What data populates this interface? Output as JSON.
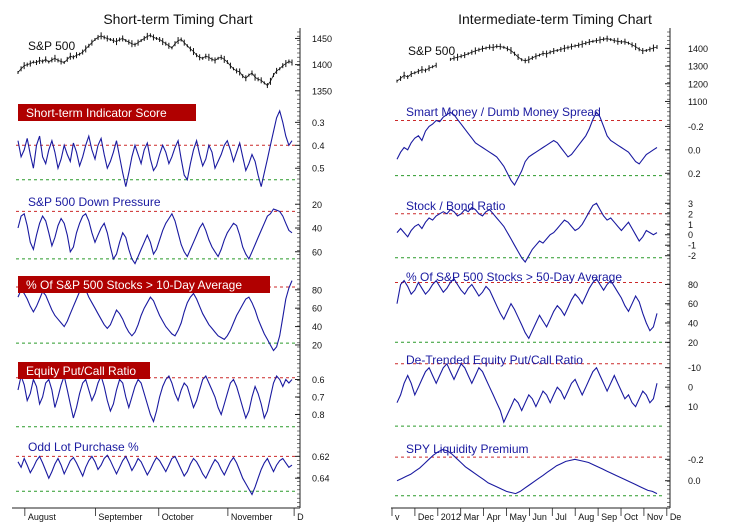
{
  "colors": {
    "series": "#1a1aa0",
    "price": "#111111",
    "ref_top": "#cc2a2a",
    "ref_bottom": "#2a9a2a",
    "label_bg": "#b00000",
    "label_text_on_red": "#ffffff",
    "label_text_blue": "#1a1aa0",
    "axis": "#222222"
  },
  "panels": {
    "left": {
      "title": "Short-term Timing Chart",
      "month_labels": [
        "August",
        "September",
        "October",
        "November",
        "D"
      ]
    },
    "right": {
      "title": "Intermediate-term Timing Chart",
      "month_labels": [
        "v",
        "Dec",
        "2012",
        "Mar",
        "Apr",
        "May",
        "Jun",
        "Jul",
        "Aug",
        "Sep",
        "Oct",
        "Nov",
        "De"
      ]
    }
  },
  "chart_data": [
    {
      "type": "line",
      "panel": "left",
      "title": "S&P 500",
      "label_style": "plain",
      "y_ticks": [
        "1450",
        "1400",
        "1350"
      ],
      "tick_values": [
        1450,
        1400,
        1350
      ],
      "ylim": [
        1340,
        1470
      ],
      "ref_top": null,
      "ref_bottom": null,
      "kind": "price",
      "values": [
        1385,
        1392,
        1398,
        1400,
        1402,
        1405,
        1404,
        1408,
        1406,
        1410,
        1405,
        1409,
        1412,
        1408,
        1406,
        1404,
        1410,
        1416,
        1414,
        1418,
        1420,
        1424,
        1430,
        1436,
        1442,
        1448,
        1452,
        1455,
        1452,
        1450,
        1448,
        1446,
        1444,
        1448,
        1450,
        1446,
        1443,
        1440,
        1438,
        1442,
        1446,
        1450,
        1454,
        1456,
        1452,
        1450,
        1448,
        1444,
        1440,
        1436,
        1432,
        1440,
        1446,
        1448,
        1442,
        1436,
        1430,
        1425,
        1418,
        1414,
        1412,
        1416,
        1414,
        1410,
        1408,
        1412,
        1414,
        1410,
        1405,
        1398,
        1392,
        1388,
        1386,
        1378,
        1374,
        1380,
        1384,
        1376,
        1372,
        1370,
        1365,
        1360,
        1368,
        1380,
        1388,
        1392,
        1398,
        1402,
        1406,
        1404
      ]
    },
    {
      "type": "line",
      "panel": "left",
      "title": "Short-term Indicator Score",
      "label_style": "red",
      "y_ticks": [
        "0.3",
        "0.4",
        "0.5"
      ],
      "tick_values": [
        0.3,
        0.4,
        0.5
      ],
      "ylim": [
        0.22,
        0.56
      ],
      "inverted": true,
      "ref_top": 0.4,
      "ref_bottom": 0.55,
      "values": [
        0.38,
        0.45,
        0.42,
        0.37,
        0.44,
        0.5,
        0.4,
        0.36,
        0.45,
        0.48,
        0.42,
        0.38,
        0.43,
        0.5,
        0.46,
        0.4,
        0.44,
        0.47,
        0.39,
        0.43,
        0.49,
        0.45,
        0.4,
        0.36,
        0.42,
        0.46,
        0.4,
        0.37,
        0.44,
        0.5,
        0.47,
        0.43,
        0.38,
        0.45,
        0.52,
        0.58,
        0.52,
        0.45,
        0.4,
        0.44,
        0.48,
        0.42,
        0.39,
        0.46,
        0.51,
        0.49,
        0.44,
        0.4,
        0.43,
        0.48,
        0.45,
        0.41,
        0.38,
        0.46,
        0.53,
        0.55,
        0.48,
        0.42,
        0.38,
        0.44,
        0.49,
        0.46,
        0.4,
        0.43,
        0.5,
        0.47,
        0.44,
        0.4,
        0.38,
        0.42,
        0.47,
        0.43,
        0.39,
        0.45,
        0.51,
        0.48,
        0.44,
        0.47,
        0.53,
        0.58,
        0.52,
        0.46,
        0.4,
        0.34,
        0.28,
        0.25,
        0.3,
        0.36,
        0.4,
        0.38
      ]
    },
    {
      "type": "line",
      "panel": "left",
      "title": "S&P 500 Down Pressure",
      "label_style": "blue",
      "y_ticks": [
        "20",
        "40",
        "60"
      ],
      "tick_values": [
        20,
        40,
        60
      ],
      "ylim": [
        8,
        72
      ],
      "inverted": true,
      "ref_top": 26,
      "ref_bottom": 66,
      "values": [
        40,
        30,
        28,
        38,
        52,
        58,
        46,
        36,
        30,
        34,
        44,
        55,
        48,
        38,
        32,
        36,
        46,
        60,
        56,
        44,
        36,
        30,
        28,
        34,
        44,
        52,
        46,
        40,
        36,
        44,
        56,
        66,
        62,
        52,
        44,
        48,
        58,
        66,
        70,
        64,
        58,
        52,
        46,
        52,
        62,
        58,
        50,
        42,
        36,
        32,
        28,
        34,
        44,
        54,
        60,
        64,
        58,
        52,
        46,
        40,
        36,
        42,
        50,
        56,
        60,
        64,
        58,
        50,
        44,
        40,
        36,
        38,
        46,
        56,
        62,
        66,
        60,
        54,
        48,
        42,
        36,
        30,
        28,
        24,
        25,
        26,
        30,
        36,
        42,
        44
      ]
    },
    {
      "type": "line",
      "panel": "left",
      "title": "% Of S&P 500 Stocks > 10-Day Average",
      "label_style": "red",
      "y_ticks": [
        "80",
        "60",
        "40",
        "20"
      ],
      "tick_values": [
        80,
        60,
        40,
        20
      ],
      "ylim": [
        8,
        95
      ],
      "ref_top": 83,
      "ref_bottom": 22,
      "values": [
        72,
        80,
        76,
        70,
        62,
        56,
        62,
        70,
        78,
        74,
        66,
        58,
        52,
        48,
        44,
        40,
        46,
        54,
        62,
        70,
        78,
        84,
        80,
        72,
        66,
        60,
        54,
        48,
        42,
        38,
        42,
        50,
        58,
        54,
        48,
        40,
        34,
        30,
        34,
        42,
        52,
        60,
        66,
        72,
        68,
        60,
        52,
        46,
        40,
        36,
        32,
        30,
        36,
        44,
        56,
        66,
        72,
        76,
        70,
        62,
        54,
        48,
        42,
        38,
        34,
        30,
        28,
        26,
        30,
        36,
        44,
        52,
        58,
        64,
        70,
        72,
        66,
        58,
        48,
        40,
        32,
        26,
        20,
        14,
        18,
        30,
        50,
        70,
        82,
        90
      ]
    },
    {
      "type": "line",
      "panel": "left",
      "title": "Equity Put/Call Ratio",
      "label_style": "red",
      "y_ticks": [
        "0.6",
        "0.7",
        "0.8"
      ],
      "tick_values": [
        0.6,
        0.7,
        0.8
      ],
      "ylim": [
        0.5,
        0.9
      ],
      "inverted": true,
      "ref_top": 0.59,
      "ref_bottom": 0.87,
      "values": [
        0.66,
        0.58,
        0.63,
        0.72,
        0.68,
        0.6,
        0.64,
        0.74,
        0.7,
        0.62,
        0.6,
        0.66,
        0.76,
        0.7,
        0.63,
        0.58,
        0.66,
        0.74,
        0.82,
        0.76,
        0.68,
        0.62,
        0.6,
        0.66,
        0.72,
        0.68,
        0.62,
        0.58,
        0.64,
        0.72,
        0.78,
        0.74,
        0.66,
        0.6,
        0.62,
        0.7,
        0.76,
        0.7,
        0.64,
        0.6,
        0.62,
        0.68,
        0.74,
        0.8,
        0.84,
        0.78,
        0.7,
        0.64,
        0.6,
        0.58,
        0.62,
        0.68,
        0.72,
        0.66,
        0.62,
        0.64,
        0.7,
        0.76,
        0.72,
        0.66,
        0.6,
        0.58,
        0.62,
        0.66,
        0.7,
        0.76,
        0.8,
        0.74,
        0.68,
        0.62,
        0.6,
        0.64,
        0.7,
        0.76,
        0.82,
        0.78,
        0.7,
        0.64,
        0.68,
        0.74,
        0.82,
        0.78,
        0.7,
        0.62,
        0.58,
        0.6,
        0.64,
        0.6,
        0.62,
        0.6
      ]
    },
    {
      "type": "line",
      "panel": "left",
      "title": "Odd Lot Purchase %",
      "label_style": "blue",
      "y_ticks": [
        "0.62",
        "0.64"
      ],
      "tick_values": [
        0.62,
        0.64
      ],
      "ylim": [
        0.605,
        0.66
      ],
      "inverted": true,
      "ref_top": 0.62,
      "ref_bottom": 0.652,
      "values": [
        0.625,
        0.63,
        0.622,
        0.628,
        0.635,
        0.63,
        0.624,
        0.62,
        0.626,
        0.633,
        0.64,
        0.634,
        0.627,
        0.622,
        0.628,
        0.636,
        0.63,
        0.624,
        0.621,
        0.626,
        0.632,
        0.638,
        0.63,
        0.624,
        0.62,
        0.625,
        0.632,
        0.628,
        0.622,
        0.619,
        0.624,
        0.63,
        0.636,
        0.63,
        0.624,
        0.62,
        0.626,
        0.633,
        0.628,
        0.622,
        0.625,
        0.631,
        0.637,
        0.632,
        0.626,
        0.621,
        0.624,
        0.629,
        0.634,
        0.628,
        0.622,
        0.62,
        0.626,
        0.632,
        0.638,
        0.634,
        0.627,
        0.622,
        0.625,
        0.63,
        0.636,
        0.64,
        0.634,
        0.628,
        0.623,
        0.626,
        0.632,
        0.637,
        0.631,
        0.625,
        0.621,
        0.626,
        0.633,
        0.64,
        0.645,
        0.65,
        0.655,
        0.648,
        0.64,
        0.632,
        0.626,
        0.622,
        0.628,
        0.634,
        0.628,
        0.624,
        0.622,
        0.626,
        0.63,
        0.628
      ]
    },
    {
      "type": "line",
      "panel": "right",
      "title": "S&P 500",
      "label_style": "plain",
      "y_ticks": [
        "1400",
        "1300",
        "1200",
        "1100"
      ],
      "tick_values": [
        1400,
        1300,
        1200,
        1100
      ],
      "ylim": [
        1080,
        1470
      ],
      "ref_top": null,
      "ref_bottom": null,
      "kind": "price",
      "gap": [
        11,
        15
      ],
      "values": [
        1215,
        1230,
        1248,
        1238,
        1255,
        1262,
        1270,
        1280,
        1275,
        1288,
        1296,
        1305,
        1312,
        1322,
        1330,
        1338,
        1345,
        1350,
        1356,
        1362,
        1370,
        1378,
        1386,
        1392,
        1398,
        1402,
        1408,
        1405,
        1412,
        1410,
        1406,
        1398,
        1388,
        1370,
        1352,
        1336,
        1330,
        1336,
        1346,
        1355,
        1362,
        1372,
        1368,
        1378,
        1385,
        1388,
        1394,
        1400,
        1405,
        1410,
        1414,
        1418,
        1424,
        1430,
        1436,
        1440,
        1444,
        1448,
        1452,
        1455,
        1450,
        1444,
        1440,
        1436,
        1438,
        1430,
        1420,
        1410,
        1395,
        1385,
        1388,
        1395,
        1402,
        1408
      ]
    },
    {
      "type": "line",
      "panel": "right",
      "title": "Smart Money / Dumb Money Spread",
      "label_style": "blue",
      "y_ticks": [
        "-0.2",
        "0.0",
        "0.2"
      ],
      "tick_values": [
        -0.2,
        0.0,
        0.2
      ],
      "ylim": [
        -0.34,
        0.3
      ],
      "inverted": true,
      "ref_top": -0.25,
      "ref_bottom": 0.22,
      "values": [
        0.08,
        0.02,
        -0.02,
        0.0,
        -0.06,
        -0.1,
        -0.12,
        -0.08,
        -0.16,
        -0.2,
        -0.22,
        -0.25,
        -0.24,
        -0.28,
        -0.3,
        -0.32,
        -0.3,
        -0.26,
        -0.22,
        -0.18,
        -0.14,
        -0.1,
        -0.06,
        -0.04,
        -0.02,
        0.0,
        0.02,
        0.04,
        0.06,
        0.1,
        0.14,
        0.2,
        0.26,
        0.3,
        0.24,
        0.18,
        0.1,
        0.06,
        0.04,
        0.02,
        0.0,
        -0.02,
        -0.04,
        -0.06,
        -0.08,
        -0.06,
        -0.02,
        0.02,
        0.06,
        0.04,
        0.0,
        -0.04,
        -0.08,
        -0.12,
        -0.18,
        -0.26,
        -0.32,
        -0.28,
        -0.2,
        -0.12,
        -0.08,
        -0.06,
        -0.04,
        -0.02,
        0.0,
        0.02,
        0.06,
        0.1,
        0.12,
        0.08,
        0.04,
        0.02,
        0.0,
        -0.02
      ]
    },
    {
      "type": "line",
      "panel": "right",
      "title": "Stock / Bond Ratio",
      "label_style": "blue",
      "y_ticks": [
        "3",
        "2",
        "1",
        "0",
        "-1",
        "-2"
      ],
      "tick_values": [
        3,
        2,
        1,
        0,
        -1,
        -2
      ],
      "ylim": [
        -2.6,
        3.6
      ],
      "ref_top": 2,
      "ref_bottom": -2.2,
      "values": [
        0.2,
        0.6,
        0.2,
        -0.2,
        0.4,
        0.8,
        1.0,
        0.6,
        1.2,
        1.6,
        1.4,
        1.8,
        2.0,
        2.2,
        2.0,
        2.4,
        2.2,
        1.8,
        2.0,
        2.4,
        2.2,
        2.6,
        2.4,
        2.0,
        1.8,
        2.2,
        2.4,
        2.0,
        1.6,
        1.2,
        0.8,
        0.2,
        -0.4,
        -1.0,
        -1.6,
        -2.2,
        -2.6,
        -2.0,
        -1.4,
        -1.0,
        -0.6,
        -0.8,
        -0.4,
        0.0,
        0.2,
        0.6,
        1.0,
        1.4,
        1.2,
        0.8,
        0.4,
        0.6,
        1.0,
        1.6,
        2.2,
        2.8,
        3.0,
        2.4,
        1.8,
        1.4,
        1.6,
        1.2,
        0.8,
        0.4,
        0.8,
        1.2,
        0.6,
        0.0,
        -0.6,
        -0.2,
        0.4,
        0.2,
        0.0,
        0.2
      ]
    },
    {
      "type": "line",
      "panel": "right",
      "title": "% Of S&P 500 Stocks > 50-Day Average",
      "label_style": "blue",
      "y_ticks": [
        "80",
        "60",
        "40",
        "20"
      ],
      "tick_values": [
        80,
        60,
        40,
        20
      ],
      "ylim": [
        12,
        95
      ],
      "ref_top": 82,
      "ref_bottom": 20,
      "values": [
        60,
        80,
        84,
        78,
        70,
        74,
        82,
        76,
        70,
        74,
        80,
        84,
        78,
        72,
        76,
        82,
        86,
        80,
        74,
        70,
        76,
        80,
        74,
        68,
        72,
        78,
        74,
        66,
        58,
        50,
        44,
        52,
        60,
        54,
        46,
        38,
        30,
        24,
        32,
        40,
        48,
        42,
        36,
        44,
        52,
        58,
        54,
        48,
        56,
        64,
        70,
        66,
        60,
        68,
        76,
        82,
        86,
        80,
        74,
        80,
        84,
        78,
        72,
        66,
        58,
        52,
        60,
        68,
        62,
        50,
        40,
        32,
        36,
        50
      ]
    },
    {
      "type": "line",
      "panel": "right",
      "title": "De-Trended  Equity Put/Call Ratio",
      "label_style": "blue",
      "y_ticks": [
        "-10",
        "0",
        "10"
      ],
      "tick_values": [
        -10,
        0,
        10
      ],
      "ylim": [
        -16,
        22
      ],
      "inverted": true,
      "ref_top": -12,
      "ref_bottom": 20,
      "values": [
        8,
        4,
        -2,
        -6,
        -2,
        4,
        0,
        -4,
        -8,
        -10,
        -6,
        -2,
        -6,
        -10,
        -12,
        -8,
        -4,
        -8,
        -12,
        -10,
        -6,
        -2,
        -6,
        -10,
        -8,
        -4,
        0,
        4,
        8,
        12,
        18,
        14,
        10,
        6,
        8,
        12,
        8,
        4,
        6,
        10,
        6,
        2,
        4,
        8,
        4,
        0,
        2,
        6,
        2,
        -2,
        -4,
        0,
        4,
        0,
        -4,
        -8,
        -10,
        -6,
        -2,
        2,
        -2,
        -6,
        -2,
        2,
        6,
        4,
        8,
        10,
        6,
        2,
        4,
        8,
        6,
        -2
      ]
    },
    {
      "type": "line",
      "panel": "right",
      "title": "SPY Liquidity Premium",
      "label_style": "blue",
      "y_ticks": [
        "-0.2",
        "0.0"
      ],
      "tick_values": [
        -0.2,
        0.0
      ],
      "ylim": [
        -0.38,
        0.18
      ],
      "inverted": true,
      "ref_top": -0.22,
      "ref_bottom": 0.14,
      "values": [
        0.0,
        -0.02,
        -0.04,
        -0.06,
        -0.09,
        -0.12,
        -0.16,
        -0.2,
        -0.24,
        -0.27,
        -0.29,
        -0.28,
        -0.25,
        -0.21,
        -0.17,
        -0.13,
        -0.1,
        -0.07,
        -0.04,
        -0.01,
        0.02,
        0.04,
        0.06,
        0.08,
        0.1,
        0.11,
        0.12,
        0.1,
        0.07,
        0.04,
        0.01,
        -0.02,
        -0.05,
        -0.08,
        -0.11,
        -0.14,
        -0.16,
        -0.18,
        -0.19,
        -0.2,
        -0.19,
        -0.18,
        -0.17,
        -0.15,
        -0.13,
        -0.11,
        -0.09,
        -0.07,
        -0.05,
        -0.03,
        -0.01,
        0.01,
        0.03,
        0.05,
        0.07,
        0.09,
        0.1,
        0.12
      ]
    }
  ]
}
